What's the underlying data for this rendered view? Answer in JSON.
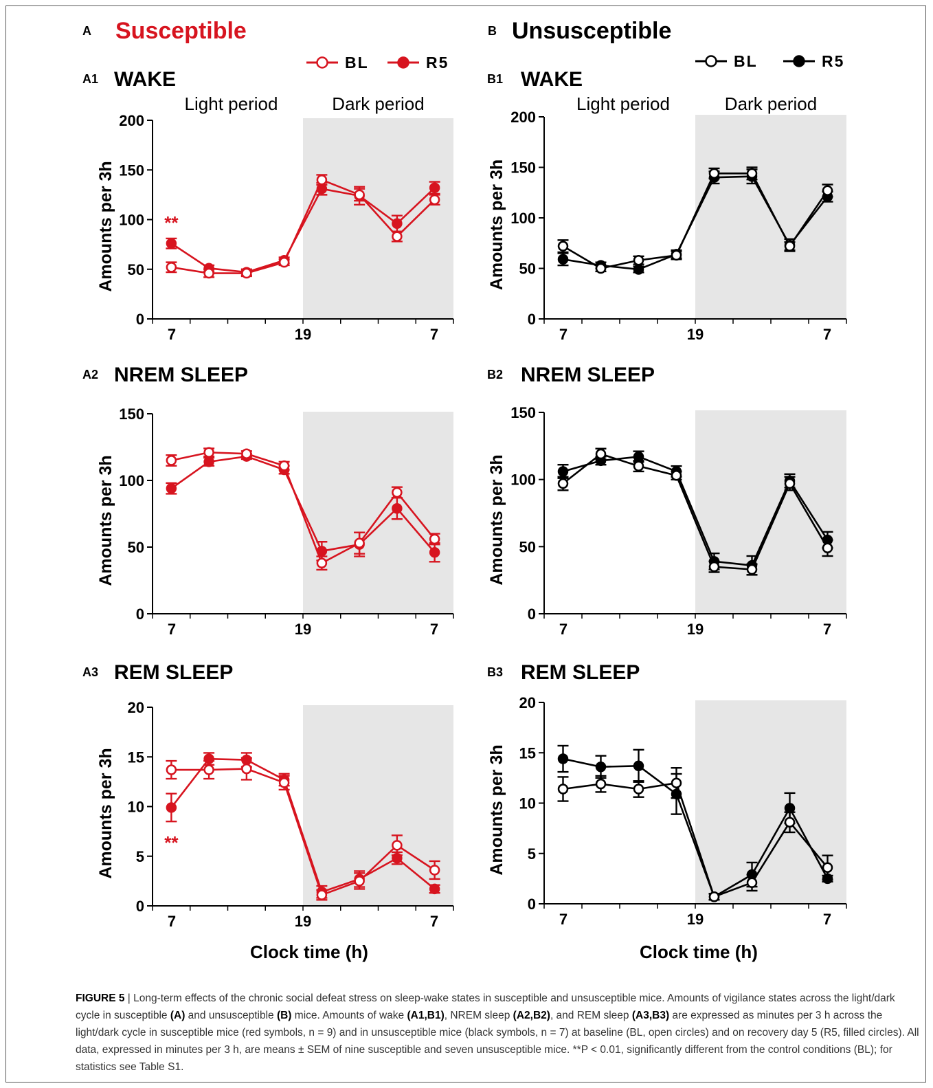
{
  "figure": {
    "colors": {
      "susceptible": "#d7141f",
      "unsusceptible": "#000000",
      "dark_shade": "#e6e6e6"
    },
    "common_x_label": "Clock time (h)",
    "columns": [
      {
        "letter": "A",
        "title": "Susceptible",
        "color": "#d7141f",
        "legend": [
          {
            "label": "BL",
            "marker": "open-circle"
          },
          {
            "label": "R5",
            "marker": "filled-circle"
          }
        ]
      },
      {
        "letter": "B",
        "title": "Unsusceptible",
        "color": "#000000",
        "legend": [
          {
            "label": "BL",
            "marker": "open-circle"
          },
          {
            "label": "R5",
            "marker": "filled-circle"
          }
        ]
      }
    ]
  },
  "chart_data": [
    {
      "id": "A1",
      "type": "line",
      "panel_label": "A1",
      "title": "WAKE",
      "group": "Susceptible",
      "ylabel": "Amounts per 3h",
      "ylim": [
        0,
        200
      ],
      "yticks": [
        0,
        50,
        100,
        150,
        200
      ],
      "xticks": [
        "7",
        "19",
        "7"
      ],
      "period_labels": [
        "Light period",
        "Dark period"
      ],
      "dark_period_shaded": true,
      "x_hour": [
        8.5,
        11.5,
        14.5,
        17.5,
        20.5,
        23.5,
        26.5,
        29.5
      ],
      "significance": [
        {
          "text": "**",
          "x_hour": 8.5,
          "position": "above"
        }
      ],
      "series": [
        {
          "name": "BL",
          "marker": "open",
          "values": [
            52,
            46,
            46,
            57,
            140,
            125,
            83,
            120
          ],
          "sem": [
            5,
            4,
            3,
            3,
            5,
            6,
            5,
            5
          ]
        },
        {
          "name": "R5",
          "marker": "filled",
          "values": [
            76,
            51,
            47,
            59,
            131,
            124,
            96,
            132
          ],
          "sem": [
            5,
            3,
            3,
            3,
            6,
            9,
            8,
            6
          ]
        }
      ]
    },
    {
      "id": "A2",
      "type": "line",
      "panel_label": "A2",
      "title": "NREM SLEEP",
      "group": "Susceptible",
      "ylabel": "Amounts per 3h",
      "ylim": [
        0,
        150
      ],
      "yticks": [
        0,
        50,
        100,
        150
      ],
      "xticks": [
        "7",
        "19",
        "7"
      ],
      "dark_period_shaded": true,
      "x_hour": [
        8.5,
        11.5,
        14.5,
        17.5,
        20.5,
        23.5,
        26.5,
        29.5
      ],
      "series": [
        {
          "name": "BL",
          "marker": "open",
          "values": [
            115,
            121,
            120,
            111,
            38,
            53,
            91,
            56
          ],
          "sem": [
            4,
            3,
            2,
            3,
            5,
            8,
            4,
            4
          ]
        },
        {
          "name": "R5",
          "marker": "filled",
          "values": [
            94,
            114,
            118,
            108,
            47,
            52,
            79,
            46
          ],
          "sem": [
            4,
            3,
            2,
            3,
            7,
            9,
            8,
            7
          ]
        }
      ]
    },
    {
      "id": "A3",
      "type": "line",
      "panel_label": "A3",
      "title": "REM SLEEP",
      "group": "Susceptible",
      "ylabel": "Amounts per 3h",
      "ylim": [
        0,
        20
      ],
      "yticks": [
        0,
        5,
        10,
        15,
        20
      ],
      "xticks": [
        "7",
        "19",
        "7"
      ],
      "dark_period_shaded": true,
      "x_hour": [
        8.5,
        11.5,
        14.5,
        17.5,
        20.5,
        23.5,
        26.5,
        29.5
      ],
      "significance": [
        {
          "text": "**",
          "x_hour": 8.5,
          "position": "below"
        }
      ],
      "series": [
        {
          "name": "BL",
          "marker": "open",
          "values": [
            13.7,
            13.7,
            13.8,
            12.4,
            1.1,
            2.5,
            6.1,
            3.6
          ],
          "sem": [
            0.9,
            0.9,
            1.1,
            0.7,
            0.5,
            0.8,
            1.0,
            0.9
          ]
        },
        {
          "name": "R5",
          "marker": "filled",
          "values": [
            9.9,
            14.8,
            14.7,
            12.7,
            1.4,
            2.7,
            4.8,
            1.7
          ],
          "sem": [
            1.4,
            0.6,
            0.7,
            0.6,
            0.6,
            0.8,
            0.6,
            0.4
          ]
        }
      ]
    },
    {
      "id": "B1",
      "type": "line",
      "panel_label": "B1",
      "title": "WAKE",
      "group": "Unsusceptible",
      "ylabel": "Amounts per 3h",
      "ylim": [
        0,
        200
      ],
      "yticks": [
        0,
        50,
        100,
        150,
        200
      ],
      "xticks": [
        "7",
        "19",
        "7"
      ],
      "period_labels": [
        "Light period",
        "Dark period"
      ],
      "dark_period_shaded": true,
      "x_hour": [
        8.5,
        11.5,
        14.5,
        17.5,
        20.5,
        23.5,
        26.5,
        29.5
      ],
      "series": [
        {
          "name": "BL",
          "marker": "open",
          "values": [
            72,
            50,
            58,
            63,
            144,
            144,
            72,
            127
          ],
          "sem": [
            6,
            3,
            4,
            4,
            5,
            6,
            4,
            6
          ]
        },
        {
          "name": "R5",
          "marker": "filled",
          "values": [
            59,
            53,
            49,
            64,
            140,
            141,
            73,
            121
          ],
          "sem": [
            6,
            3,
            3,
            4,
            6,
            7,
            6,
            5
          ]
        }
      ]
    },
    {
      "id": "B2",
      "type": "line",
      "panel_label": "B2",
      "title": "NREM SLEEP",
      "group": "Unsusceptible",
      "ylabel": "Amounts per 3h",
      "ylim": [
        0,
        150
      ],
      "yticks": [
        0,
        50,
        100,
        150
      ],
      "xticks": [
        "7",
        "19",
        "7"
      ],
      "dark_period_shaded": true,
      "x_hour": [
        8.5,
        11.5,
        14.5,
        17.5,
        20.5,
        23.5,
        26.5,
        29.5
      ],
      "series": [
        {
          "name": "BL",
          "marker": "open",
          "values": [
            97,
            119,
            110,
            103,
            35,
            33,
            97,
            49
          ],
          "sem": [
            5,
            4,
            4,
            3,
            4,
            4,
            5,
            6
          ]
        },
        {
          "name": "R5",
          "marker": "filled",
          "values": [
            106,
            114,
            117,
            106,
            39,
            36,
            99,
            55
          ],
          "sem": [
            5,
            3,
            4,
            4,
            6,
            7,
            5,
            6
          ]
        }
      ]
    },
    {
      "id": "B3",
      "type": "line",
      "panel_label": "B3",
      "title": "REM SLEEP",
      "group": "Unsusceptible",
      "ylabel": "Amounts per 3h",
      "ylim": [
        0,
        20
      ],
      "yticks": [
        0,
        5,
        10,
        15,
        20
      ],
      "xticks": [
        "7",
        "19",
        "7"
      ],
      "dark_period_shaded": true,
      "x_hour": [
        8.5,
        11.5,
        14.5,
        17.5,
        20.5,
        23.5,
        26.5,
        29.5
      ],
      "series": [
        {
          "name": "BL",
          "marker": "open",
          "values": [
            11.4,
            11.9,
            11.4,
            12.0,
            0.7,
            2.1,
            8.1,
            3.6
          ],
          "sem": [
            1.2,
            0.8,
            0.8,
            1.5,
            0.3,
            0.8,
            1.0,
            1.2
          ]
        },
        {
          "name": "R5",
          "marker": "filled",
          "values": [
            14.4,
            13.6,
            13.7,
            10.9,
            0.7,
            2.9,
            9.5,
            2.5
          ],
          "sem": [
            1.3,
            1.1,
            1.6,
            2.0,
            0.3,
            1.2,
            1.5,
            0.3
          ]
        }
      ]
    }
  ],
  "caption": {
    "label": "FIGURE 5",
    "separator": " | ",
    "parts": [
      {
        "b": false,
        "t": "Long-term effects of the chronic social defeat stress on sleep-wake states in susceptible and unsusceptible mice. Amounts of vigilance states across the light/dark cycle in susceptible "
      },
      {
        "b": true,
        "t": "(A)"
      },
      {
        "b": false,
        "t": " and unsusceptible "
      },
      {
        "b": true,
        "t": "(B)"
      },
      {
        "b": false,
        "t": " mice. Amounts of wake "
      },
      {
        "b": true,
        "t": "(A1,B1)"
      },
      {
        "b": false,
        "t": ", NREM sleep "
      },
      {
        "b": true,
        "t": "(A2,B2)"
      },
      {
        "b": false,
        "t": ", and REM sleep "
      },
      {
        "b": true,
        "t": "(A3,B3)"
      },
      {
        "b": false,
        "t": " are expressed as minutes per 3 h across the light/dark cycle in susceptible mice (red symbols, n = 9) and in unsusceptible mice (black symbols, n = 7) at baseline (BL, open circles) and on recovery day 5 (R5, filled circles). All data, expressed in minutes per 3 h, are means ± SEM of nine susceptible and seven unsusceptible mice. **P < 0.01, significantly different from the control conditions (BL); for statistics see Table S1."
      }
    ]
  }
}
